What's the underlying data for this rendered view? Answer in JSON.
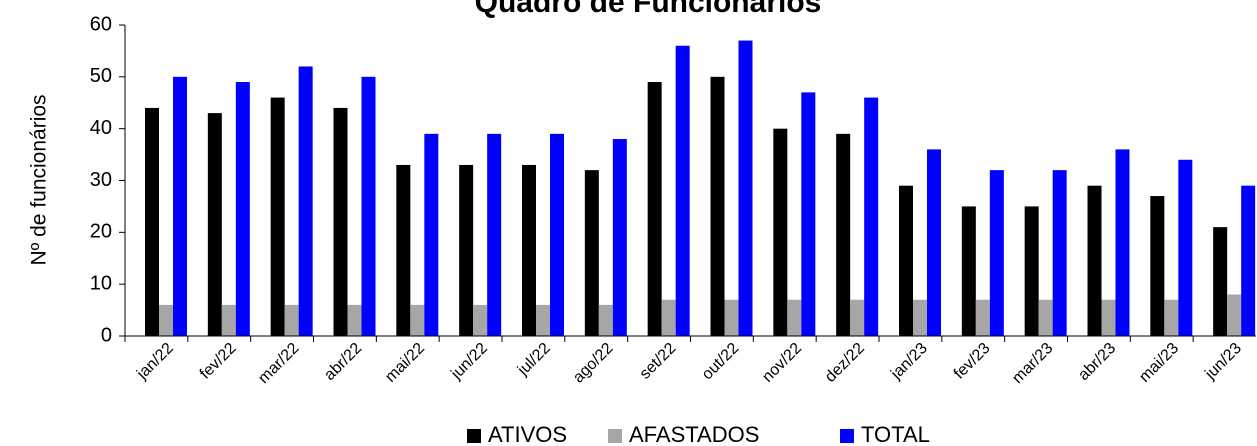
{
  "chart_data": {
    "type": "bar",
    "title": "Quadro de Funcionários",
    "y_label": "Nº de funcionários",
    "categories": [
      "jan/22",
      "fev/22",
      "mar/22",
      "abr/22",
      "mai/22",
      "jun/22",
      "jul/22",
      "ago/22",
      "set/22",
      "out/22",
      "nov/22",
      "dez/22",
      "jan/23",
      "fev/23",
      "mar/23",
      "abr/23",
      "mai/23",
      "jun/23"
    ],
    "series": [
      {
        "name": "ATIVOS",
        "color": "#000000",
        "values": [
          44,
          43,
          46,
          44,
          33,
          33,
          33,
          32,
          49,
          50,
          40,
          39,
          29,
          25,
          25,
          29,
          27,
          21
        ]
      },
      {
        "name": "AFASTADOS",
        "color": "#a6a6a6",
        "values": [
          6,
          6,
          6,
          6,
          6,
          6,
          6,
          6,
          7,
          7,
          7,
          7,
          7,
          7,
          7,
          7,
          7,
          8
        ]
      },
      {
        "name": "TOTAL",
        "color": "#0000ff",
        "values": [
          50,
          49,
          52,
          50,
          39,
          39,
          39,
          38,
          56,
          57,
          47,
          46,
          36,
          32,
          32,
          36,
          34,
          29
        ]
      }
    ],
    "ylim": [
      0,
      60
    ],
    "yticks": [
      0,
      10,
      20,
      30,
      40,
      50,
      60
    ],
    "legend": "bottom"
  }
}
